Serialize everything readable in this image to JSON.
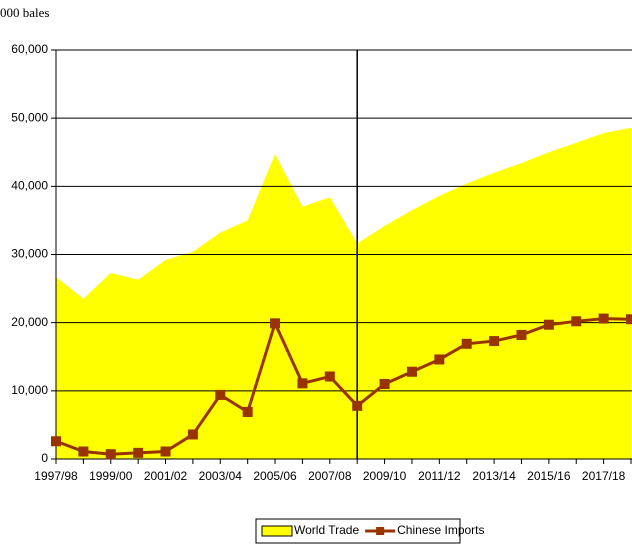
{
  "chart_data": {
    "type": "area_line",
    "y_label": "000 bales",
    "categories": [
      "1997/98",
      null,
      "1999/00",
      null,
      "2001/02",
      null,
      "2003/04",
      null,
      "2005/06",
      null,
      "2007/08",
      null,
      "2009/10",
      null,
      "2011/12",
      null,
      "2013/14",
      null,
      "2015/16",
      null,
      "2017/18",
      null
    ],
    "series": [
      {
        "name": "World Trade",
        "kind": "area",
        "color": "#ffff00",
        "values": [
          26700,
          23500,
          27300,
          26300,
          29200,
          30400,
          33200,
          35000,
          44700,
          37000,
          38400,
          31600,
          34200,
          36500,
          38600,
          40400,
          42000,
          43400,
          45000,
          46400,
          47800,
          48600
        ]
      },
      {
        "name": "Chinese Imports",
        "kind": "line",
        "color": "#993300",
        "values": [
          2600,
          1100,
          700,
          900,
          1100,
          3600,
          9400,
          6900,
          19900,
          11100,
          12100,
          7800,
          11000,
          12800,
          14600,
          16900,
          17300,
          18200,
          19700,
          20200,
          20600,
          20500
        ]
      }
    ],
    "divider": 11,
    "ylim": [
      0,
      60000
    ],
    "yticks": [
      0,
      {
        "value": 10000,
        "label": "10,000"
      },
      {
        "value": 20000,
        "label": "20,000"
      },
      {
        "value": 30000,
        "label": "30,000"
      },
      {
        "value": 40000,
        "label": "40,000"
      },
      {
        "value": 50000,
        "label": "50,000"
      },
      {
        "value": 60000,
        "label": "60,000"
      }
    ],
    "grid": true,
    "legend": "bottom"
  }
}
